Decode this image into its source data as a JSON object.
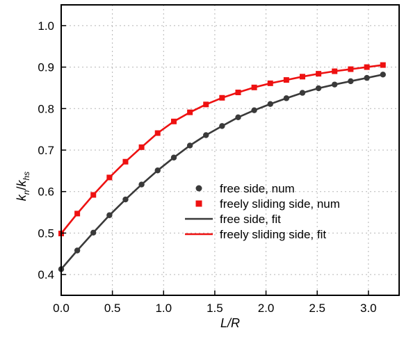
{
  "chart_data": {
    "type": "line",
    "title": "",
    "xlabel": "L/R",
    "ylabel": {
      "k1": "k",
      "s1": "n",
      "slash": "/",
      "k2": "k",
      "s2": "hs"
    },
    "xlim": [
      0.0,
      3.3
    ],
    "ylim": [
      0.35,
      1.05
    ],
    "x_ticks": [
      "0.0",
      "0.5",
      "1.0",
      "1.5",
      "2.0",
      "2.5",
      "3.0"
    ],
    "y_ticks": [
      "0.4",
      "0.5",
      "0.6",
      "0.7",
      "0.8",
      "0.9",
      "1.0"
    ],
    "grid": "dotted",
    "legend_position": "lower-right",
    "series": [
      {
        "name": "free side, num",
        "kind": "points",
        "marker": "circle",
        "color": "#3a3a3a",
        "x": [
          0.0,
          0.157,
          0.314,
          0.471,
          0.628,
          0.785,
          0.942,
          1.1,
          1.257,
          1.414,
          1.571,
          1.728,
          1.885,
          2.042,
          2.199,
          2.356,
          2.513,
          2.67,
          2.827,
          2.985,
          3.142
        ],
        "y": [
          0.413,
          0.458,
          0.501,
          0.543,
          0.581,
          0.617,
          0.651,
          0.682,
          0.711,
          0.736,
          0.758,
          0.779,
          0.796,
          0.811,
          0.825,
          0.838,
          0.849,
          0.858,
          0.866,
          0.874,
          0.882
        ]
      },
      {
        "name": "freely sliding side, num",
        "kind": "points",
        "marker": "square",
        "color": "#ee1111",
        "x": [
          0.0,
          0.157,
          0.314,
          0.471,
          0.628,
          0.785,
          0.942,
          1.1,
          1.257,
          1.414,
          1.571,
          1.728,
          1.885,
          2.042,
          2.199,
          2.356,
          2.513,
          2.67,
          2.827,
          2.985,
          3.142
        ],
        "y": [
          0.499,
          0.547,
          0.592,
          0.634,
          0.672,
          0.707,
          0.741,
          0.769,
          0.791,
          0.81,
          0.826,
          0.839,
          0.851,
          0.861,
          0.869,
          0.877,
          0.884,
          0.89,
          0.895,
          0.9,
          0.905
        ]
      },
      {
        "name": "free side, fit",
        "kind": "line",
        "color": "#3a3a3a",
        "x": [
          0.0,
          0.157,
          0.314,
          0.471,
          0.628,
          0.785,
          0.942,
          1.1,
          1.257,
          1.414,
          1.571,
          1.728,
          1.885,
          2.042,
          2.199,
          2.356,
          2.513,
          2.67,
          2.827,
          2.985,
          3.142
        ],
        "y": [
          0.413,
          0.458,
          0.501,
          0.543,
          0.581,
          0.617,
          0.651,
          0.682,
          0.711,
          0.736,
          0.758,
          0.779,
          0.796,
          0.811,
          0.825,
          0.838,
          0.849,
          0.858,
          0.866,
          0.874,
          0.882
        ]
      },
      {
        "name": "freely sliding side, fit",
        "kind": "line",
        "color": "#ee1111",
        "x": [
          0.0,
          0.157,
          0.314,
          0.471,
          0.628,
          0.785,
          0.942,
          1.1,
          1.257,
          1.414,
          1.571,
          1.728,
          1.885,
          2.042,
          2.199,
          2.356,
          2.513,
          2.67,
          2.827,
          2.985,
          3.142
        ],
        "y": [
          0.499,
          0.547,
          0.592,
          0.634,
          0.672,
          0.707,
          0.741,
          0.769,
          0.791,
          0.81,
          0.826,
          0.839,
          0.851,
          0.861,
          0.869,
          0.877,
          0.884,
          0.89,
          0.895,
          0.9,
          0.905
        ]
      }
    ]
  }
}
